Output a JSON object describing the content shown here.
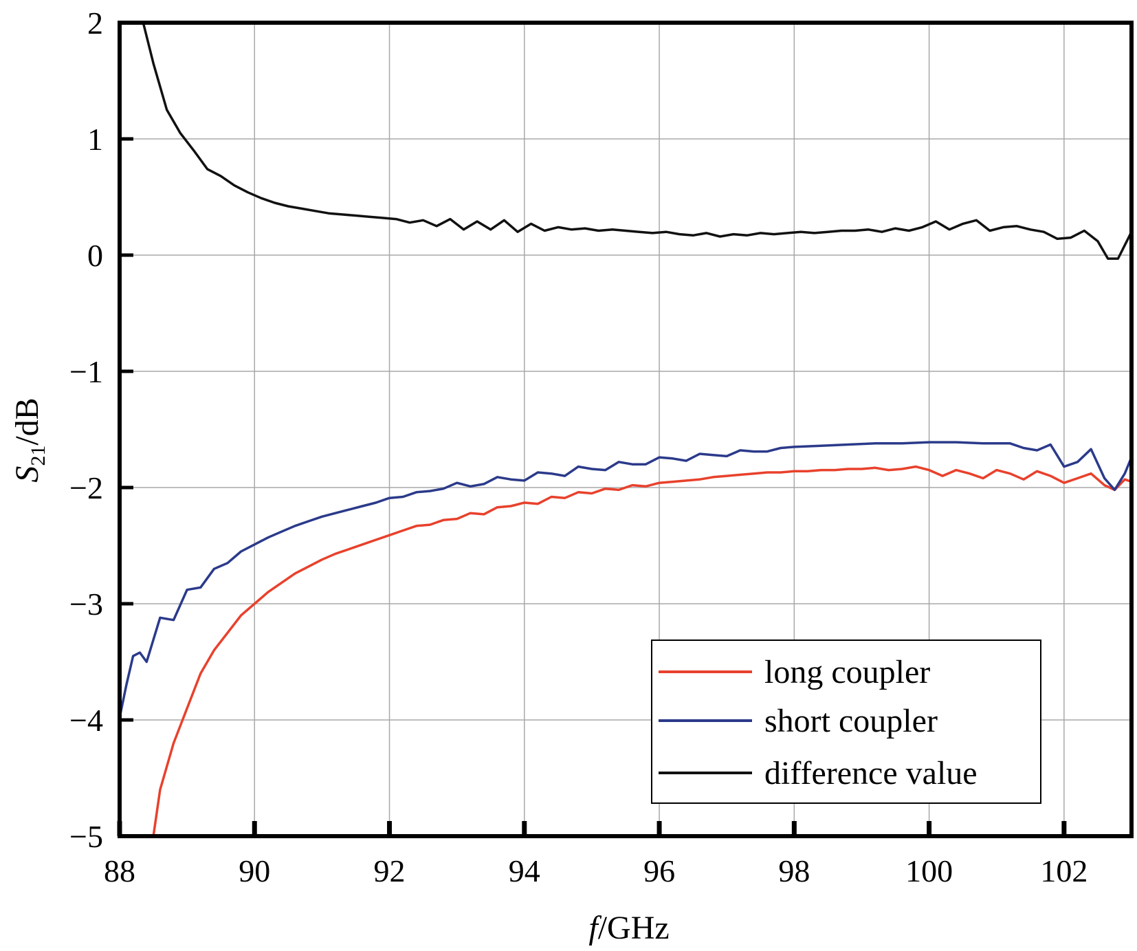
{
  "chart_data": {
    "type": "line",
    "xlabel_italic": "f",
    "xlabel_rest": "/GHz",
    "ylabel_main": "S",
    "ylabel_sub": "21",
    "ylabel_rest": "/dB",
    "xlim": [
      88,
      103
    ],
    "ylim": [
      -5,
      2
    ],
    "xticks": [
      88,
      90,
      92,
      94,
      96,
      98,
      100,
      102
    ],
    "xtick_labels": [
      "88",
      "90",
      "92",
      "94",
      "96",
      "98",
      "100",
      "102"
    ],
    "yticks": [
      2,
      1,
      0,
      -1,
      -2,
      -3,
      -4,
      -5
    ],
    "ytick_labels": [
      "2",
      "1",
      "0",
      "−1",
      "−2",
      "−3",
      "−4",
      "−5"
    ],
    "grid": true,
    "legend_position": "bottom-right",
    "series": [
      {
        "name": "long coupler",
        "color": "#e8412c",
        "points": [
          [
            88.5,
            -5.0
          ],
          [
            88.6,
            -4.6
          ],
          [
            88.8,
            -4.2
          ],
          [
            89.0,
            -3.9
          ],
          [
            89.2,
            -3.6
          ],
          [
            89.4,
            -3.4
          ],
          [
            89.6,
            -3.25
          ],
          [
            89.8,
            -3.1
          ],
          [
            90.0,
            -3.0
          ],
          [
            90.2,
            -2.9
          ],
          [
            90.4,
            -2.82
          ],
          [
            90.6,
            -2.74
          ],
          [
            90.8,
            -2.68
          ],
          [
            91.0,
            -2.62
          ],
          [
            91.2,
            -2.57
          ],
          [
            91.4,
            -2.53
          ],
          [
            91.6,
            -2.49
          ],
          [
            91.8,
            -2.45
          ],
          [
            92.0,
            -2.41
          ],
          [
            92.2,
            -2.37
          ],
          [
            92.4,
            -2.33
          ],
          [
            92.6,
            -2.32
          ],
          [
            92.8,
            -2.28
          ],
          [
            93.0,
            -2.27
          ],
          [
            93.2,
            -2.22
          ],
          [
            93.4,
            -2.23
          ],
          [
            93.6,
            -2.17
          ],
          [
            93.8,
            -2.16
          ],
          [
            94.0,
            -2.13
          ],
          [
            94.2,
            -2.14
          ],
          [
            94.4,
            -2.08
          ],
          [
            94.6,
            -2.09
          ],
          [
            94.8,
            -2.04
          ],
          [
            95.0,
            -2.05
          ],
          [
            95.2,
            -2.01
          ],
          [
            95.4,
            -2.02
          ],
          [
            95.6,
            -1.98
          ],
          [
            95.8,
            -1.99
          ],
          [
            96.0,
            -1.96
          ],
          [
            96.2,
            -1.95
          ],
          [
            96.4,
            -1.94
          ],
          [
            96.6,
            -1.93
          ],
          [
            96.8,
            -1.91
          ],
          [
            97.0,
            -1.9
          ],
          [
            97.2,
            -1.89
          ],
          [
            97.4,
            -1.88
          ],
          [
            97.6,
            -1.87
          ],
          [
            97.8,
            -1.87
          ],
          [
            98.0,
            -1.86
          ],
          [
            98.2,
            -1.86
          ],
          [
            98.4,
            -1.85
          ],
          [
            98.6,
            -1.85
          ],
          [
            98.8,
            -1.84
          ],
          [
            99.0,
            -1.84
          ],
          [
            99.2,
            -1.83
          ],
          [
            99.4,
            -1.85
          ],
          [
            99.6,
            -1.84
          ],
          [
            99.8,
            -1.82
          ],
          [
            100.0,
            -1.85
          ],
          [
            100.2,
            -1.9
          ],
          [
            100.4,
            -1.85
          ],
          [
            100.6,
            -1.88
          ],
          [
            100.8,
            -1.92
          ],
          [
            101.0,
            -1.85
          ],
          [
            101.2,
            -1.88
          ],
          [
            101.4,
            -1.93
          ],
          [
            101.6,
            -1.86
          ],
          [
            101.8,
            -1.9
          ],
          [
            102.0,
            -1.96
          ],
          [
            102.2,
            -1.92
          ],
          [
            102.4,
            -1.88
          ],
          [
            102.6,
            -1.98
          ],
          [
            102.75,
            -2.02
          ],
          [
            102.9,
            -1.93
          ],
          [
            103.0,
            -1.95
          ]
        ]
      },
      {
        "name": "short coupler",
        "color": "#2b3a8a",
        "points": [
          [
            88.0,
            -3.98
          ],
          [
            88.1,
            -3.7
          ],
          [
            88.2,
            -3.45
          ],
          [
            88.3,
            -3.42
          ],
          [
            88.4,
            -3.5
          ],
          [
            88.6,
            -3.12
          ],
          [
            88.8,
            -3.14
          ],
          [
            89.0,
            -2.88
          ],
          [
            89.2,
            -2.86
          ],
          [
            89.4,
            -2.7
          ],
          [
            89.6,
            -2.65
          ],
          [
            89.8,
            -2.55
          ],
          [
            90.0,
            -2.49
          ],
          [
            90.2,
            -2.43
          ],
          [
            90.4,
            -2.38
          ],
          [
            90.6,
            -2.33
          ],
          [
            90.8,
            -2.29
          ],
          [
            91.0,
            -2.25
          ],
          [
            91.2,
            -2.22
          ],
          [
            91.4,
            -2.19
          ],
          [
            91.6,
            -2.16
          ],
          [
            91.8,
            -2.13
          ],
          [
            92.0,
            -2.09
          ],
          [
            92.2,
            -2.08
          ],
          [
            92.4,
            -2.04
          ],
          [
            92.6,
            -2.03
          ],
          [
            92.8,
            -2.01
          ],
          [
            93.0,
            -1.96
          ],
          [
            93.2,
            -1.99
          ],
          [
            93.4,
            -1.97
          ],
          [
            93.6,
            -1.91
          ],
          [
            93.8,
            -1.93
          ],
          [
            94.0,
            -1.94
          ],
          [
            94.2,
            -1.87
          ],
          [
            94.4,
            -1.88
          ],
          [
            94.6,
            -1.9
          ],
          [
            94.8,
            -1.82
          ],
          [
            95.0,
            -1.84
          ],
          [
            95.2,
            -1.85
          ],
          [
            95.4,
            -1.78
          ],
          [
            95.6,
            -1.8
          ],
          [
            95.8,
            -1.8
          ],
          [
            96.0,
            -1.74
          ],
          [
            96.2,
            -1.75
          ],
          [
            96.4,
            -1.77
          ],
          [
            96.6,
            -1.71
          ],
          [
            96.8,
            -1.72
          ],
          [
            97.0,
            -1.73
          ],
          [
            97.2,
            -1.68
          ],
          [
            97.4,
            -1.69
          ],
          [
            97.6,
            -1.69
          ],
          [
            97.8,
            -1.66
          ],
          [
            98.0,
            -1.65
          ],
          [
            98.4,
            -1.64
          ],
          [
            98.8,
            -1.63
          ],
          [
            99.2,
            -1.62
          ],
          [
            99.6,
            -1.62
          ],
          [
            100.0,
            -1.61
          ],
          [
            100.4,
            -1.61
          ],
          [
            100.8,
            -1.62
          ],
          [
            101.2,
            -1.62
          ],
          [
            101.4,
            -1.66
          ],
          [
            101.6,
            -1.68
          ],
          [
            101.8,
            -1.63
          ],
          [
            102.0,
            -1.82
          ],
          [
            102.2,
            -1.78
          ],
          [
            102.4,
            -1.67
          ],
          [
            102.6,
            -1.92
          ],
          [
            102.75,
            -2.02
          ],
          [
            102.9,
            -1.88
          ],
          [
            103.0,
            -1.74
          ]
        ]
      },
      {
        "name": "difference value",
        "color": "#111111",
        "points": [
          [
            88.35,
            2.0
          ],
          [
            88.5,
            1.65
          ],
          [
            88.7,
            1.25
          ],
          [
            88.9,
            1.05
          ],
          [
            89.1,
            0.9
          ],
          [
            89.3,
            0.74
          ],
          [
            89.5,
            0.68
          ],
          [
            89.7,
            0.6
          ],
          [
            89.9,
            0.54
          ],
          [
            90.1,
            0.49
          ],
          [
            90.3,
            0.45
          ],
          [
            90.5,
            0.42
          ],
          [
            90.7,
            0.4
          ],
          [
            90.9,
            0.38
          ],
          [
            91.1,
            0.36
          ],
          [
            91.3,
            0.35
          ],
          [
            91.5,
            0.34
          ],
          [
            91.7,
            0.33
          ],
          [
            91.9,
            0.32
          ],
          [
            92.1,
            0.31
          ],
          [
            92.3,
            0.28
          ],
          [
            92.5,
            0.3
          ],
          [
            92.7,
            0.25
          ],
          [
            92.9,
            0.31
          ],
          [
            93.1,
            0.22
          ],
          [
            93.3,
            0.29
          ],
          [
            93.5,
            0.22
          ],
          [
            93.7,
            0.3
          ],
          [
            93.9,
            0.2
          ],
          [
            94.1,
            0.27
          ],
          [
            94.3,
            0.21
          ],
          [
            94.5,
            0.24
          ],
          [
            94.7,
            0.22
          ],
          [
            94.9,
            0.23
          ],
          [
            95.1,
            0.21
          ],
          [
            95.3,
            0.22
          ],
          [
            95.5,
            0.21
          ],
          [
            95.7,
            0.2
          ],
          [
            95.9,
            0.19
          ],
          [
            96.1,
            0.2
          ],
          [
            96.3,
            0.18
          ],
          [
            96.5,
            0.17
          ],
          [
            96.7,
            0.19
          ],
          [
            96.9,
            0.16
          ],
          [
            97.1,
            0.18
          ],
          [
            97.3,
            0.17
          ],
          [
            97.5,
            0.19
          ],
          [
            97.7,
            0.18
          ],
          [
            97.9,
            0.19
          ],
          [
            98.1,
            0.2
          ],
          [
            98.3,
            0.19
          ],
          [
            98.5,
            0.2
          ],
          [
            98.7,
            0.21
          ],
          [
            98.9,
            0.21
          ],
          [
            99.1,
            0.22
          ],
          [
            99.3,
            0.2
          ],
          [
            99.5,
            0.23
          ],
          [
            99.7,
            0.21
          ],
          [
            99.9,
            0.24
          ],
          [
            100.1,
            0.29
          ],
          [
            100.3,
            0.22
          ],
          [
            100.5,
            0.27
          ],
          [
            100.7,
            0.3
          ],
          [
            100.9,
            0.21
          ],
          [
            101.1,
            0.24
          ],
          [
            101.3,
            0.25
          ],
          [
            101.5,
            0.22
          ],
          [
            101.7,
            0.2
          ],
          [
            101.9,
            0.14
          ],
          [
            102.1,
            0.15
          ],
          [
            102.3,
            0.21
          ],
          [
            102.5,
            0.12
          ],
          [
            102.65,
            -0.03
          ],
          [
            102.8,
            -0.03
          ],
          [
            103.0,
            0.2
          ]
        ]
      }
    ]
  }
}
